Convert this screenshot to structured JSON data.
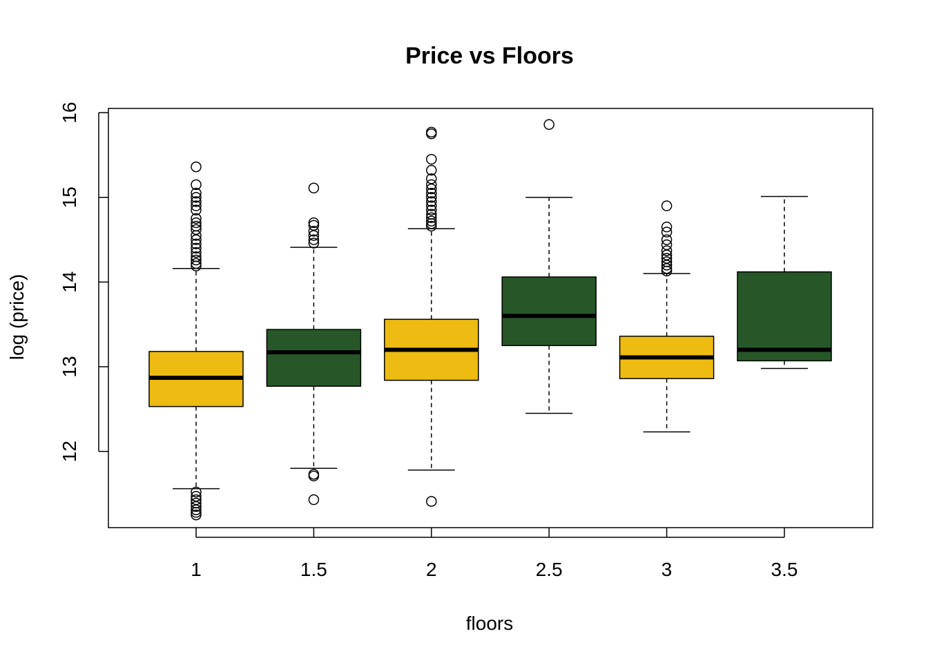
{
  "chart_data": {
    "type": "box",
    "title": "Price vs Floors",
    "xlabel": "floors",
    "ylabel": "log (price)",
    "categories": [
      "1",
      "1.5",
      "2",
      "2.5",
      "3",
      "3.5"
    ],
    "ylim": [
      11.1,
      16.05
    ],
    "yticks": [
      12,
      13,
      14,
      15,
      16
    ],
    "colors": {
      "gold": "#EDBB12",
      "green": "#275728",
      "outline": "#000000"
    },
    "boxes": [
      {
        "category": "1",
        "fill": "#EDBB12",
        "whisker_low": 11.56,
        "q1": 12.53,
        "median": 12.87,
        "q3": 13.18,
        "whisker_high": 14.16,
        "outliers": [
          15.36,
          15.15,
          15.05,
          15.0,
          14.95,
          14.9,
          14.85,
          14.75,
          14.7,
          14.66,
          14.62,
          14.55,
          14.5,
          14.45,
          14.4,
          14.35,
          14.3,
          14.26,
          14.22,
          14.19,
          11.52,
          11.47,
          11.43,
          11.39,
          11.35,
          11.31,
          11.28,
          11.25
        ]
      },
      {
        "category": "1.5",
        "fill": "#275728",
        "whisker_low": 11.8,
        "q1": 12.77,
        "median": 13.17,
        "q3": 13.44,
        "whisker_high": 14.41,
        "outliers": [
          15.11,
          14.7,
          14.67,
          14.6,
          14.55,
          14.5,
          14.46,
          11.73,
          11.71,
          11.43
        ]
      },
      {
        "category": "2",
        "fill": "#EDBB12",
        "whisker_low": 11.78,
        "q1": 12.84,
        "median": 13.2,
        "q3": 13.56,
        "whisker_high": 14.63,
        "outliers": [
          15.77,
          15.75,
          15.45,
          15.32,
          15.22,
          15.15,
          15.1,
          15.05,
          15.0,
          14.95,
          14.9,
          14.85,
          14.8,
          14.76,
          14.72,
          14.69,
          14.66,
          11.41
        ]
      },
      {
        "category": "2.5",
        "fill": "#275728",
        "whisker_low": 12.45,
        "q1": 13.25,
        "median": 13.6,
        "q3": 14.06,
        "whisker_high": 15.0,
        "outliers": [
          15.86
        ]
      },
      {
        "category": "3",
        "fill": "#EDBB12",
        "whisker_low": 12.23,
        "q1": 12.86,
        "median": 13.11,
        "q3": 13.36,
        "whisker_high": 14.1,
        "outliers": [
          14.9,
          14.65,
          14.59,
          14.5,
          14.44,
          14.37,
          14.32,
          14.28,
          14.24,
          14.2,
          14.16,
          14.13
        ]
      },
      {
        "category": "3.5",
        "fill": "#275728",
        "whisker_low": 12.98,
        "q1": 13.07,
        "median": 13.2,
        "q3": 14.12,
        "whisker_high": 15.01,
        "outliers": []
      }
    ]
  }
}
